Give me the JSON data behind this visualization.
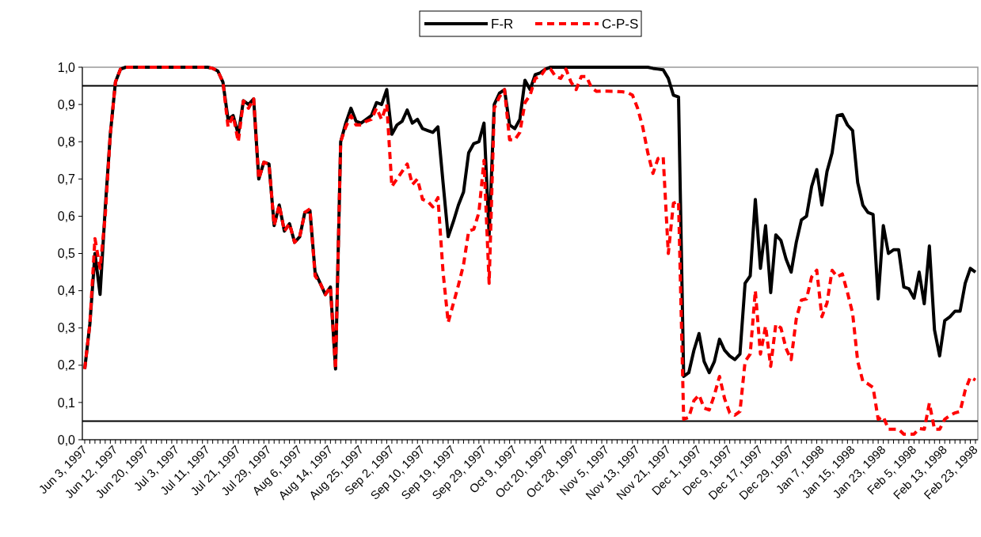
{
  "chart_data": {
    "type": "line",
    "categories": [
      "Jun 3, 1997",
      null,
      null,
      null,
      null,
      null,
      "Jun 12, 1997",
      null,
      null,
      null,
      null,
      null,
      "Jun 20, 1997",
      null,
      null,
      null,
      null,
      null,
      "Jul 3, 1997",
      null,
      null,
      null,
      null,
      null,
      "Jul 11, 1997",
      null,
      null,
      null,
      null,
      null,
      "Jul 21, 1997",
      null,
      null,
      null,
      null,
      null,
      "Jul 29, 1997",
      null,
      null,
      null,
      null,
      null,
      "Aug 6, 1997",
      null,
      null,
      null,
      null,
      null,
      "Aug 14, 1997",
      null,
      null,
      null,
      null,
      null,
      "Aug 25, 1997",
      null,
      null,
      null,
      null,
      null,
      "Sep 2, 1997",
      null,
      null,
      null,
      null,
      null,
      "Sep 10, 1997",
      null,
      null,
      null,
      null,
      null,
      "Sep 19, 1997",
      null,
      null,
      null,
      null,
      null,
      "Sep 29, 1997",
      null,
      null,
      null,
      null,
      null,
      "Oct 9, 1997",
      null,
      null,
      null,
      null,
      null,
      "Oct 20, 1997",
      null,
      null,
      null,
      null,
      null,
      "Oct 28, 1997",
      null,
      null,
      null,
      null,
      null,
      "Nov 5, 1997",
      null,
      null,
      null,
      null,
      null,
      "Nov 13, 1997",
      null,
      null,
      null,
      null,
      null,
      "Nov 21, 1997",
      null,
      null,
      null,
      null,
      null,
      "Dec 1, 1997",
      null,
      null,
      null,
      null,
      null,
      "Dec 9, 1997",
      null,
      null,
      null,
      null,
      null,
      "Dec 17, 1997",
      null,
      null,
      null,
      null,
      null,
      "Dec 29, 1997",
      null,
      null,
      null,
      null,
      null,
      "Jan 7, 1998",
      null,
      null,
      null,
      null,
      null,
      "Jan 15, 1998",
      null,
      null,
      null,
      null,
      null,
      "Jan 23, 1998",
      null,
      null,
      null,
      null,
      null,
      "Feb 5, 1998",
      null,
      null,
      null,
      null,
      null,
      "Feb 13, 1998",
      null,
      null,
      null,
      null,
      null,
      "Feb 23, 1998"
    ],
    "series": [
      {
        "name": "F-R",
        "color": "#000000",
        "line_style": "solid",
        "values": [
          0.19,
          0.31,
          0.5,
          0.39,
          0.62,
          0.82,
          0.96,
          0.995,
          1,
          1,
          1,
          1,
          1,
          1,
          1,
          1,
          1,
          1,
          1,
          1,
          1,
          1,
          1,
          1,
          1,
          0.997,
          0.99,
          0.96,
          0.86,
          0.87,
          0.82,
          0.91,
          0.9,
          0.915,
          0.7,
          0.745,
          0.74,
          0.575,
          0.63,
          0.56,
          0.58,
          0.53,
          0.545,
          0.61,
          0.615,
          0.45,
          0.42,
          0.39,
          0.41,
          0.19,
          0.8,
          0.85,
          0.89,
          0.855,
          0.85,
          0.86,
          0.87,
          0.905,
          0.9,
          0.94,
          0.82,
          0.845,
          0.855,
          0.885,
          0.85,
          0.86,
          0.835,
          0.83,
          0.825,
          0.84,
          0.69,
          0.545,
          0.585,
          0.63,
          0.665,
          0.77,
          0.795,
          0.8,
          0.85,
          0.55,
          0.9,
          0.93,
          0.94,
          0.845,
          0.835,
          0.86,
          0.965,
          0.94,
          0.98,
          0.985,
          0.995,
          1,
          1,
          1,
          1,
          1,
          1,
          1,
          1,
          1,
          1,
          1,
          1,
          1,
          1,
          1,
          1,
          1,
          1,
          1,
          1,
          0.997,
          0.995,
          0.993,
          0.97,
          0.925,
          0.92,
          0.17,
          0.18,
          0.24,
          0.285,
          0.21,
          0.18,
          0.21,
          0.27,
          0.24,
          0.225,
          0.215,
          0.23,
          0.42,
          0.44,
          0.645,
          0.46,
          0.575,
          0.395,
          0.55,
          0.535,
          0.485,
          0.45,
          0.53,
          0.59,
          0.6,
          0.68,
          0.725,
          0.63,
          0.72,
          0.77,
          0.87,
          0.873,
          0.845,
          0.83,
          0.69,
          0.63,
          0.61,
          0.605,
          0.378,
          0.575,
          0.5,
          0.51,
          0.51,
          0.41,
          0.405,
          0.38,
          0.45,
          0.365,
          0.52,
          0.295,
          0.225,
          0.32,
          0.33,
          0.345,
          0.345,
          0.42,
          0.46,
          0.45
        ]
      },
      {
        "name": "C-P-S",
        "color": "#ff0000",
        "line_style": "dashed",
        "values": [
          0.19,
          0.31,
          0.54,
          0.46,
          0.6,
          0.82,
          0.96,
          0.995,
          1,
          1,
          1,
          1,
          1,
          1,
          1,
          1,
          1,
          1,
          1,
          1,
          1,
          1,
          1,
          1,
          1,
          0.997,
          0.99,
          0.96,
          0.84,
          0.87,
          0.8,
          0.91,
          0.89,
          0.915,
          0.7,
          0.745,
          0.74,
          0.575,
          0.63,
          0.56,
          0.58,
          0.53,
          0.545,
          0.61,
          0.62,
          0.44,
          0.42,
          0.39,
          0.41,
          0.19,
          0.8,
          0.84,
          0.87,
          0.845,
          0.845,
          0.855,
          0.86,
          0.89,
          0.86,
          0.9,
          0.68,
          0.7,
          0.72,
          0.74,
          0.685,
          0.7,
          0.645,
          0.64,
          0.625,
          0.65,
          0.45,
          0.315,
          0.365,
          0.415,
          0.47,
          0.56,
          0.565,
          0.61,
          0.75,
          0.42,
          0.89,
          0.92,
          0.94,
          0.805,
          0.805,
          0.825,
          0.905,
          0.925,
          0.97,
          0.975,
          0.995,
          0.995,
          0.975,
          0.97,
          0.995,
          0.96,
          0.94,
          0.975,
          0.975,
          0.945,
          0.935,
          0.936,
          0.936,
          0.935,
          0.935,
          0.934,
          0.932,
          0.925,
          0.89,
          0.84,
          0.77,
          0.715,
          0.755,
          0.76,
          0.5,
          0.635,
          0.64,
          0.055,
          0.06,
          0.105,
          0.12,
          0.085,
          0.08,
          0.12,
          0.17,
          0.11,
          0.072,
          0.066,
          0.076,
          0.21,
          0.23,
          0.4,
          0.23,
          0.305,
          0.197,
          0.31,
          0.3,
          0.245,
          0.215,
          0.325,
          0.375,
          0.378,
          0.437,
          0.455,
          0.33,
          0.367,
          0.455,
          0.437,
          0.445,
          0.395,
          0.34,
          0.21,
          0.157,
          0.15,
          0.14,
          0.055,
          0.062,
          0.028,
          0.028,
          0.028,
          0.015,
          0.015,
          0.015,
          0.03,
          0.028,
          0.098,
          0.028,
          0.028,
          0.055,
          0.065,
          0.072,
          0.076,
          0.133,
          0.168,
          0.16
        ]
      }
    ],
    "ylim": [
      0,
      1
    ],
    "yticks": [
      {
        "value": 0,
        "label": "0,0"
      },
      {
        "value": 0.1,
        "label": "0,1"
      },
      {
        "value": 0.2,
        "label": "0,2"
      },
      {
        "value": 0.3,
        "label": "0,3"
      },
      {
        "value": 0.4,
        "label": "0,4"
      },
      {
        "value": 0.5,
        "label": "0,5"
      },
      {
        "value": 0.6,
        "label": "0,6"
      },
      {
        "value": 0.7,
        "label": "0,7"
      },
      {
        "value": 0.8,
        "label": "0,8"
      },
      {
        "value": 0.9,
        "label": "0,9"
      },
      {
        "value": 1,
        "label": "1,0"
      }
    ],
    "ref_lines": [
      {
        "axis": "y",
        "value": 0.95,
        "color": "#000000"
      },
      {
        "axis": "y",
        "value": 0.05,
        "color": "#000000"
      }
    ],
    "legend": "top",
    "grid": false
  }
}
